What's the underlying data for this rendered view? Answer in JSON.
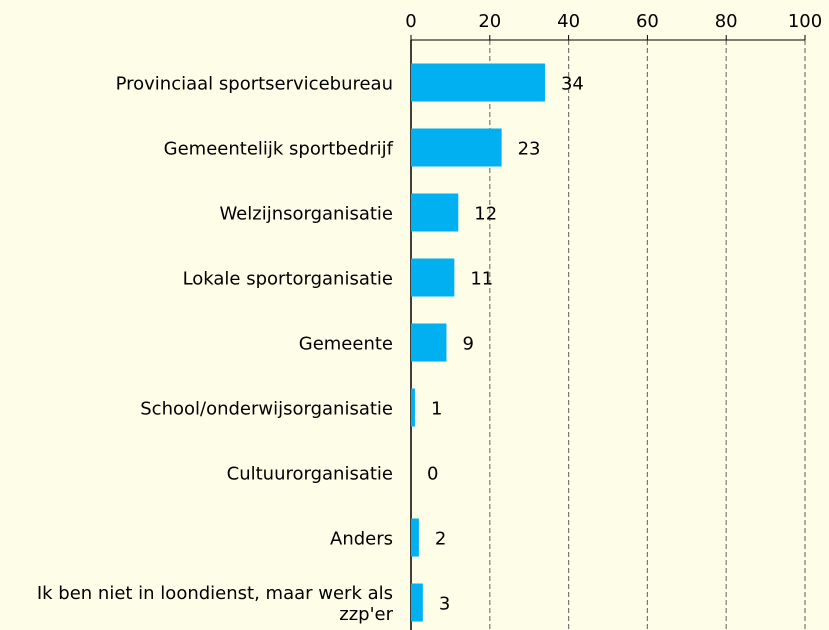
{
  "chart_data": {
    "type": "bar",
    "orientation": "horizontal",
    "categories": [
      "Provinciaal sportservicebureau",
      "Gemeentelijk sportbedrijf",
      "Welzijnsorganisatie",
      "Lokale sportorganisatie",
      "Gemeente",
      "School/onderwijsorganisatie",
      "Cultuurorganisatie",
      "Anders",
      "Ik ben niet in loondienst, maar werk als zzp'er"
    ],
    "values": [
      34,
      23,
      12,
      11,
      9,
      1,
      0,
      2,
      3
    ],
    "color": "#00b0f0",
    "xlim": [
      0,
      100
    ],
    "xticks": [
      0,
      20,
      40,
      60,
      80,
      100
    ],
    "grid": true
  }
}
